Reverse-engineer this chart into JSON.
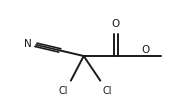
{
  "bg_color": "#ffffff",
  "line_color": "#1a1a1a",
  "text_color": "#1a1a1a",
  "lw": 1.4,
  "font_size": 7.0,
  "N_label": "N",
  "Cl1_label": "Cl",
  "Cl2_label": "Cl",
  "O_carbonyl_label": "O",
  "O_ester_label": "O"
}
